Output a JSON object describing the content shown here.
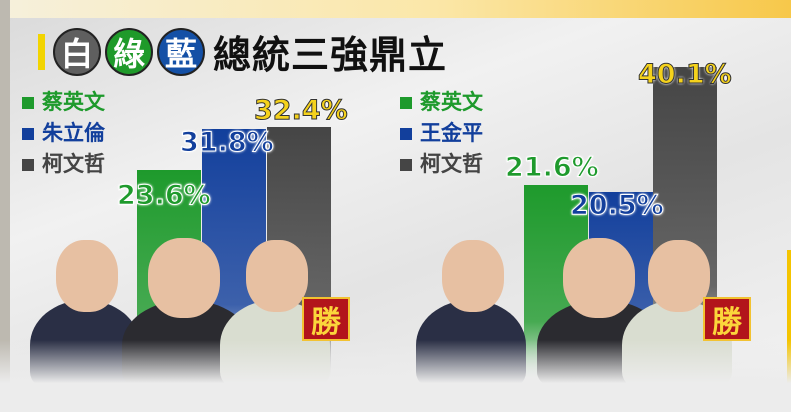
{
  "title": {
    "circles": [
      {
        "text": "白",
        "color": "#5f5f5f"
      },
      {
        "text": "綠",
        "color": "#1f9a2a"
      },
      {
        "text": "藍",
        "color": "#1450a6"
      }
    ],
    "main": "總統三強鼎立"
  },
  "win_badge": "勝",
  "colors": {
    "green": "#1e9a2c",
    "blue": "#123f9c",
    "grey": "#454545",
    "yellow": "#f5d21c"
  },
  "chart_data": [
    {
      "type": "bar",
      "categories": [
        "蔡英文",
        "朱立倫",
        "柯文哲"
      ],
      "values": [
        23.6,
        31.8,
        32.4
      ],
      "labels": [
        "23.6%",
        "31.8%",
        "32.4%"
      ],
      "winner": "柯文哲"
    },
    {
      "type": "bar",
      "categories": [
        "蔡英文",
        "王金平",
        "柯文哲"
      ],
      "values": [
        21.6,
        20.5,
        40.1
      ],
      "labels": [
        "21.6%",
        "20.5%",
        "40.1%"
      ],
      "winner": "柯文哲"
    }
  ]
}
